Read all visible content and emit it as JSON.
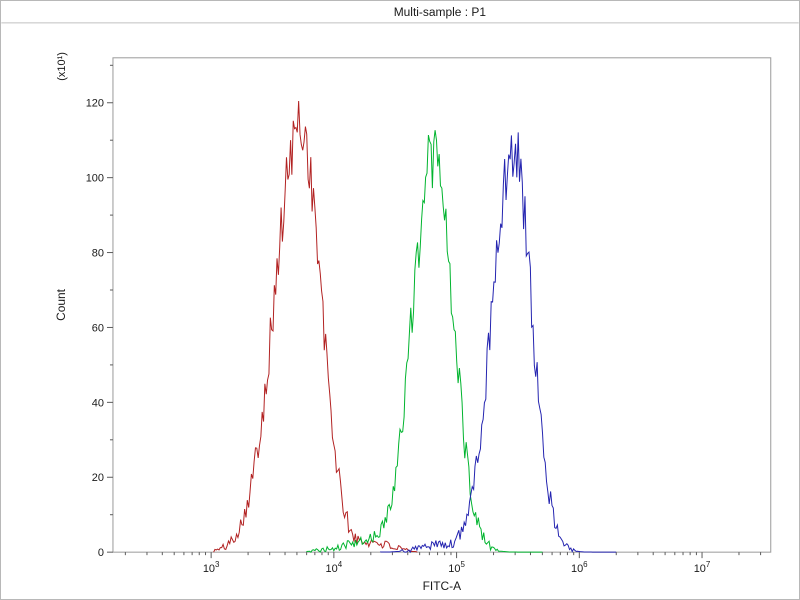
{
  "chart_data": {
    "type": "line",
    "subtype": "flow-cytometry-histogram",
    "title": "Multi-sample : P1",
    "xlabel": "FITC-A",
    "ylabel": "Count",
    "y_axis_multiplier": "(x10¹)",
    "x_scale": "log10",
    "x_range_log": [
      2.2,
      7.56
    ],
    "y_range": [
      0,
      132
    ],
    "x_tick_exponents": [
      3,
      4,
      5,
      6,
      7
    ],
    "y_major_ticks": [
      0,
      20,
      40,
      60,
      80,
      100,
      120
    ],
    "y_minor_step": 10,
    "grid": false,
    "legend": "none",
    "series": [
      {
        "name": "red-sample",
        "color": "#b22222",
        "peak": {
          "x": 5400,
          "count_x10": 116
        },
        "range_log": [
          3.02,
          4.68
        ],
        "components": [
          {
            "center": 3.73,
            "sigma_left": 0.21,
            "sigma_right": 0.165,
            "height": 114
          },
          {
            "center": 4.33,
            "sigma_left": 0.1,
            "sigma_right": 0.14,
            "height": 2.5
          }
        ]
      },
      {
        "name": "green-sample",
        "color": "#00b42e",
        "peak": {
          "x": 65000,
          "count_x10": 108
        },
        "range_log": [
          3.78,
          5.7
        ],
        "components": [
          {
            "center": 4.81,
            "sigma_left": 0.17,
            "sigma_right": 0.16,
            "height": 106
          },
          {
            "center": 4.28,
            "sigma_left": 0.22,
            "sigma_right": 0.1,
            "height": 2.5
          }
        ]
      },
      {
        "name": "blue-sample",
        "color": "#2424b0",
        "peak": {
          "x": 290000,
          "count_x10": 110
        },
        "range_log": [
          4.38,
          6.3
        ],
        "components": [
          {
            "center": 5.46,
            "sigma_left": 0.17,
            "sigma_right": 0.15,
            "height": 108
          },
          {
            "center": 4.85,
            "sigma_left": 0.15,
            "sigma_right": 0.1,
            "height": 2.0
          }
        ]
      }
    ]
  },
  "frame_color": "#9a9a9a",
  "background": "#ffffff"
}
